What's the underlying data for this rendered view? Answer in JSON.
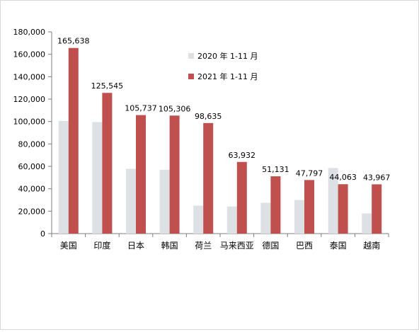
{
  "chart_data": {
    "type": "bar",
    "title": "",
    "xlabel": "",
    "ylabel": "",
    "ylim": [
      0,
      180000
    ],
    "yticks": [
      0,
      20000,
      40000,
      60000,
      80000,
      100000,
      120000,
      140000,
      160000,
      180000
    ],
    "ytick_labels": [
      "0",
      "20,000",
      "40,000",
      "60,000",
      "80,000",
      "100,000",
      "120,000",
      "140,000",
      "160,000",
      "180,000"
    ],
    "categories": [
      "美国",
      "印度",
      "日本",
      "韩国",
      "荷兰",
      "马来西亚",
      "德国",
      "巴西",
      "泰国",
      "越南"
    ],
    "series": [
      {
        "name": "2020 年 1-11 月",
        "color": "#dde1e6",
        "values": [
          100500,
          99500,
          57800,
          57000,
          25000,
          24200,
          27500,
          30000,
          58500,
          18000
        ]
      },
      {
        "name": "2021 年 1-11 月",
        "color": "#c0504d",
        "values": [
          165638,
          125545,
          105737,
          105306,
          98635,
          63932,
          51131,
          47797,
          44063,
          43967
        ],
        "labels": [
          "165,638",
          "125,545",
          "105,737",
          "105,306",
          "98,635",
          "63,932",
          "51,131",
          "47,797",
          "44,063",
          "43,967"
        ]
      }
    ],
    "grid": false,
    "legend": "top-center-inside"
  }
}
